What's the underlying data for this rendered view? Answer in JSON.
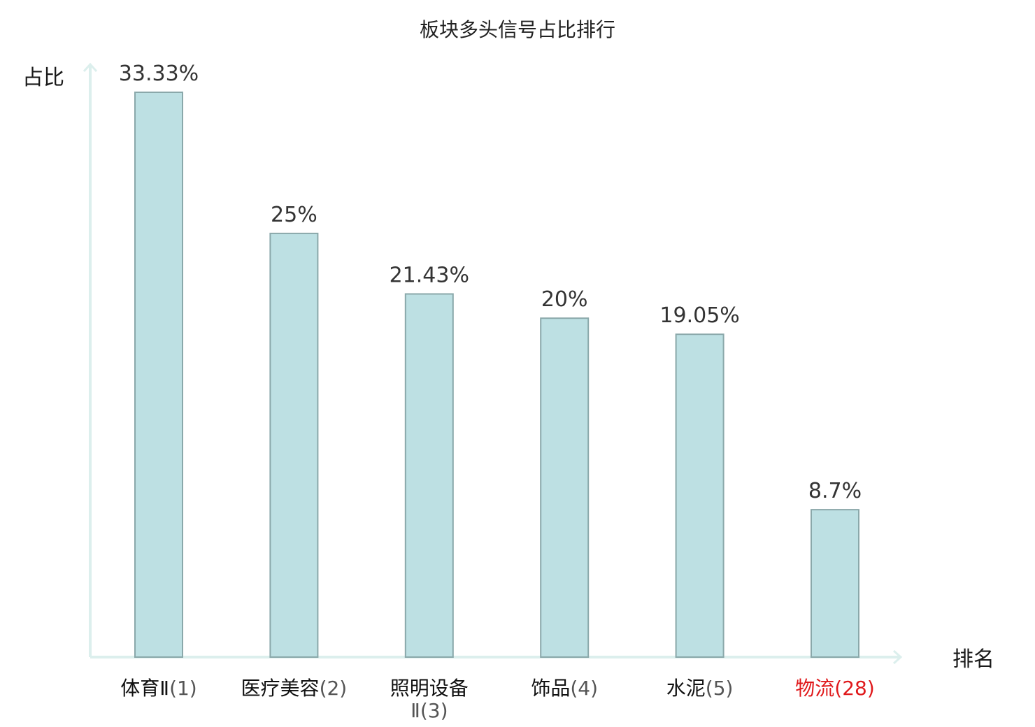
{
  "chart_data": {
    "type": "bar",
    "title": "板块多头信号占比排行",
    "xlabel": "排名",
    "ylabel": "占比",
    "categories": [
      {
        "name": "体育Ⅱ",
        "rank": "(1)",
        "highlight": false
      },
      {
        "name": "医疗美容",
        "rank": "(2)",
        "highlight": false
      },
      {
        "name": "照明设备Ⅱ",
        "rank": "(3)",
        "highlight": false
      },
      {
        "name": "饰品",
        "rank": "(4)",
        "highlight": false
      },
      {
        "name": "水泥",
        "rank": "(5)",
        "highlight": false
      },
      {
        "name": "物流",
        "rank": "(28)",
        "highlight": true
      }
    ],
    "values": [
      33.33,
      25,
      21.43,
      20,
      19.05,
      8.7
    ],
    "value_labels": [
      "33.33%",
      "25%",
      "21.43%",
      "20%",
      "19.05%",
      "8.7%"
    ],
    "ylim": [
      0,
      35
    ],
    "grid": false,
    "legend": "none",
    "colors": {
      "bar_fill": "#bde0e3",
      "bar_stroke": "#8aa8aa",
      "axis": "#dcefed",
      "highlight_text": "#e0191b",
      "tick_name_text": "#111111",
      "tick_rank_text": "#555555"
    }
  }
}
